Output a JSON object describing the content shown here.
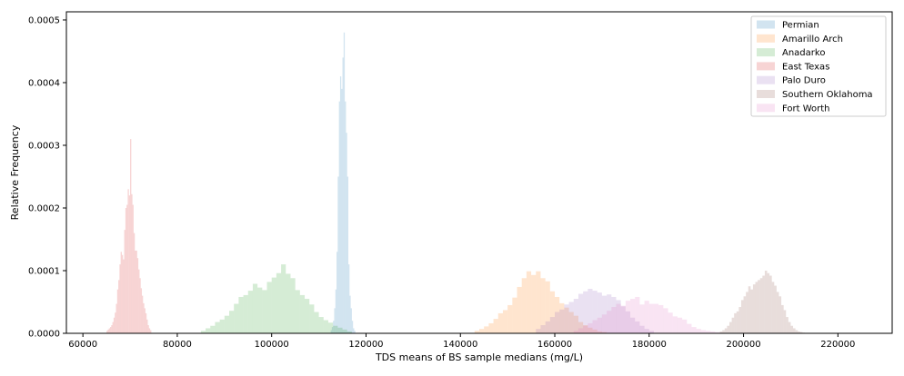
{
  "chart_data": {
    "type": "histogram",
    "xlabel": "TDS means of BS sample medians (mg/L)",
    "ylabel": "Relative Frequency",
    "xlim": [
      56500,
      231500
    ],
    "ylim": [
      0,
      0.000513
    ],
    "x_ticks": [
      60000,
      80000,
      100000,
      120000,
      140000,
      160000,
      180000,
      200000,
      220000
    ],
    "y_ticks": [
      0,
      0.0001,
      0.0002,
      0.0003,
      0.0004,
      0.0005
    ],
    "x_tick_labels": [
      "60000",
      "80000",
      "100000",
      "120000",
      "140000",
      "160000",
      "180000",
      "200000",
      "220000"
    ],
    "y_tick_labels": [
      "0.0000",
      "0.0001",
      "0.0002",
      "0.0003",
      "0.0004",
      "0.0005"
    ],
    "legend_position": "top-right",
    "series": [
      {
        "name": "Permian",
        "color": "#1f77b4",
        "bin_start": 112500,
        "bin_width": 250,
        "values": [
          5e-06,
          1e-05,
          2e-05,
          4e-05,
          7e-05,
          0.00013,
          0.00025,
          0.00037,
          0.00041,
          0.00039,
          0.00044,
          0.00048,
          0.00037,
          0.00032,
          0.00025,
          0.00011,
          6e-05,
          4e-05,
          2e-05,
          8e-06,
          4e-06
        ]
      },
      {
        "name": "Amarillo Arch",
        "color": "#ff7f0e",
        "bin_start": 143000,
        "bin_width": 1000,
        "values": [
          4e-06,
          7e-06,
          1.1e-05,
          1.6e-05,
          2.3e-05,
          3.2e-05,
          3.7e-05,
          4.5e-05,
          5.7e-05,
          7.4e-05,
          8.8e-05,
          9.9e-05,
          9.3e-05,
          9.9e-05,
          8.8e-05,
          8.3e-05,
          6.7e-05,
          5.8e-05,
          4.8e-05,
          4.1e-05,
          3.4e-05,
          2.8e-05,
          1.8e-05,
          1.3e-05,
          9e-06,
          6e-06,
          3e-06,
          2e-06
        ]
      },
      {
        "name": "Anadarko",
        "color": "#2ca02c",
        "bin_start": 85000,
        "bin_width": 1000,
        "values": [
          4e-06,
          8e-06,
          1.2e-05,
          1.8e-05,
          2.2e-05,
          2.8e-05,
          3.6e-05,
          4.7e-05,
          5.8e-05,
          6.1e-05,
          6.8e-05,
          7.9e-05,
          7.3e-05,
          6.9e-05,
          8.2e-05,
          8.9e-05,
          9.6e-05,
          0.00011,
          9.5e-05,
          8.8e-05,
          6.9e-05,
          6.1e-05,
          5.5e-05,
          4.6e-05,
          3.4e-05,
          2.6e-05,
          2.1e-05,
          1.7e-05,
          1.2e-05,
          9e-06,
          6e-06,
          3e-06
        ]
      },
      {
        "name": "East Texas",
        "color": "#d62728",
        "bin_start": 65000,
        "bin_width": 250,
        "values": [
          4e-06,
          6e-06,
          8e-06,
          1e-05,
          1.3e-05,
          1.8e-05,
          2.5e-05,
          3.3e-05,
          4.7e-05,
          7e-05,
          8.5e-05,
          0.00011,
          0.00013,
          0.000125,
          0.000118,
          0.000165,
          0.0002,
          0.000205,
          0.00023,
          0.00022,
          0.00031,
          0.000222,
          0.000205,
          0.00016,
          0.000132,
          0.000132,
          0.00012,
          0.000102,
          8.8e-05,
          7.2e-05,
          6e-05,
          4.8e-05,
          4e-05,
          3.2e-05,
          2.2e-05,
          1.3e-05,
          8e-06,
          5e-06
        ]
      },
      {
        "name": "Palo Duro",
        "color": "#9467bd",
        "bin_start": 156000,
        "bin_width": 1000,
        "values": [
          7e-06,
          1.3e-05,
          1.9e-05,
          2.6e-05,
          3.4e-05,
          3.8e-05,
          4.6e-05,
          5e-05,
          5.5e-05,
          6.3e-05,
          6.7e-05,
          7.1e-05,
          6.8e-05,
          6.5e-05,
          6e-05,
          6.2e-05,
          5.8e-05,
          5.3e-05,
          4.3e-05,
          3.5e-05,
          2.5e-05,
          1.9e-05,
          1.2e-05,
          7e-06,
          4e-06
        ]
      },
      {
        "name": "Southern Oklahoma",
        "color": "#8c564b",
        "bin_start": 195000,
        "bin_width": 500,
        "values": [
          3e-06,
          5e-06,
          8e-06,
          1.2e-05,
          1.8e-05,
          2.5e-05,
          3.2e-05,
          3.5e-05,
          4.2e-05,
          5.3e-05,
          5.9e-05,
          6.6e-05,
          7.5e-05,
          7e-05,
          7.8e-05,
          8.2e-05,
          8.5e-05,
          8.8e-05,
          9.2e-05,
          0.0001,
          9.6e-05,
          9.2e-05,
          8.2e-05,
          7.6e-05,
          6.6e-05,
          5.9e-05,
          4.5e-05,
          3.7e-05,
          2.6e-05,
          1.8e-05,
          1.2e-05,
          8e-06,
          5e-06,
          3e-06,
          2e-06,
          1e-06
        ]
      },
      {
        "name": "Fort Worth",
        "color": "#e377c2",
        "bin_start": 164000,
        "bin_width": 1000,
        "values": [
          4e-06,
          8e-06,
          1.2e-05,
          1.6e-05,
          2.1e-05,
          2.5e-05,
          3e-05,
          3.6e-05,
          4.2e-05,
          4.7e-05,
          4.4e-05,
          5.2e-05,
          5.5e-05,
          5.8e-05,
          4.6e-05,
          5.2e-05,
          4.7e-05,
          4.7e-05,
          4.5e-05,
          4e-05,
          3.3e-05,
          2.7e-05,
          2.5e-05,
          2.2e-05,
          1.5e-05,
          1e-05,
          7e-06,
          5e-06,
          4e-06,
          3e-06,
          2e-06,
          1e-06
        ]
      }
    ]
  }
}
